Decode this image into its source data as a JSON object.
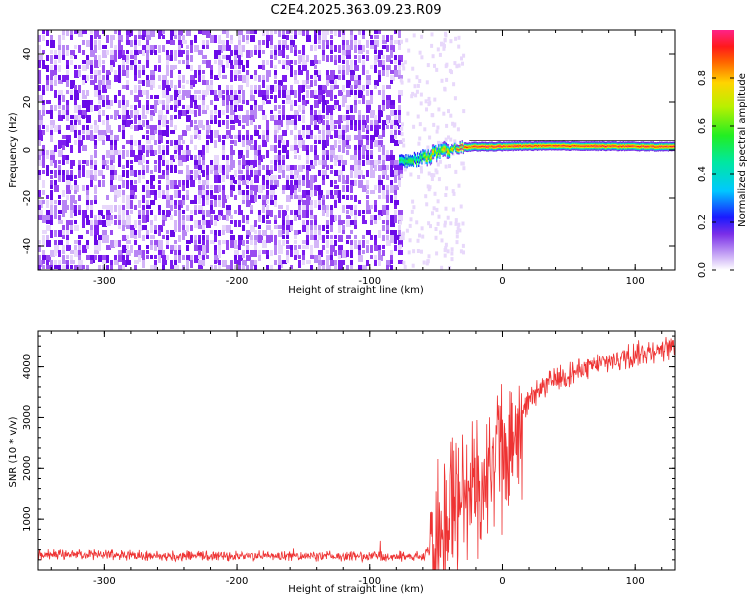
{
  "chart_data": [
    {
      "type": "heatmap",
      "title": "C2E4.2025.363.09.23.R09",
      "xlabel": "Height of straight line (km)",
      "ylabel": "Frequency (Hz)",
      "xlim": [
        -350,
        130
      ],
      "ylim": [
        -50,
        50
      ],
      "x_ticks": [
        "-300",
        "-200",
        "-100",
        "0",
        "100"
      ],
      "y_ticks": [
        "40",
        "20",
        "0",
        "-20",
        "-40"
      ],
      "noise_region_end_km": -78,
      "signal_track": {
        "x": [
          -78,
          -70,
          -60,
          -50,
          -40,
          -30,
          -20,
          -10,
          0,
          20,
          40,
          60,
          80,
          100,
          120,
          130
        ],
        "freq": [
          -5,
          -4.5,
          -3,
          -1,
          0,
          1.2,
          1.5,
          1.5,
          1.6,
          1.8,
          1.8,
          1.8,
          1.7,
          1.6,
          1.5,
          1.5
        ],
        "note": "peak amplitude ~1.0 from x=-40 onward; ~0.5 near x=-75"
      },
      "colorbar": {
        "label": "Normalized spectral amplitude",
        "range": [
          0.0,
          1.0
        ],
        "ticks": [
          "0.0",
          "0.2",
          "0.4",
          "0.6",
          "0.8"
        ]
      }
    },
    {
      "type": "line",
      "xlabel": "Height of straight line (km)",
      "ylabel": "SNR (10 * v/v)",
      "xlim": [
        -350,
        130
      ],
      "ylim": [
        0,
        4700
      ],
      "x_ticks": [
        "-300",
        "-200",
        "-100",
        "0",
        "100"
      ],
      "y_ticks": [
        "1000",
        "2000",
        "3000",
        "4000"
      ],
      "color": "#ee3333",
      "series": [
        {
          "x": [
            -350,
            -300,
            -250,
            -200,
            -150,
            -100,
            -60,
            -50,
            -40,
            -30,
            -20,
            -10,
            0,
            10,
            20,
            30,
            40,
            60,
            80,
            100,
            120,
            130
          ],
          "values": [
            300,
            300,
            280,
            280,
            270,
            270,
            270,
            500,
            1200,
            1500,
            1700,
            1900,
            2300,
            2900,
            3300,
            3600,
            3750,
            3950,
            4100,
            4250,
            4350,
            4400
          ]
        }
      ]
    }
  ]
}
